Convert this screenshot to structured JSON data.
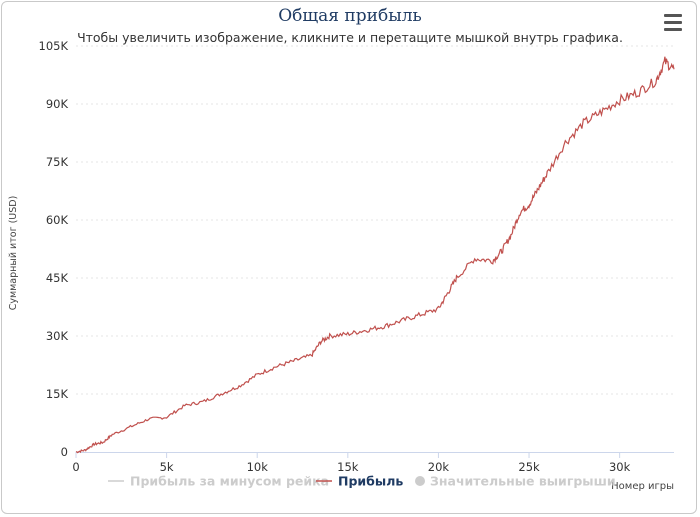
{
  "colors": {
    "series_line": "#c0504d",
    "hidden_series": "#cccccc",
    "gridline": "#e6e6e6",
    "title": "#1f3b63",
    "active_legend": "#1f3b63"
  },
  "toolbar": {
    "menu_icon": "hamburger-menu-icon"
  },
  "chart_data": {
    "type": "line",
    "title": "Общая прибыль",
    "subtitle": "Чтобы увеличить изображение, кликните и перетащите мышкой внутрь графика.",
    "xlabel": "Номер игры",
    "ylabel": "Суммарный итог (USD)",
    "xlim": [
      0,
      33000
    ],
    "ylim": [
      0,
      105000
    ],
    "x_ticks": [
      0,
      5000,
      10000,
      15000,
      20000,
      25000,
      30000
    ],
    "x_tick_labels": [
      "0",
      "5k",
      "10k",
      "15k",
      "20k",
      "25k",
      "30k"
    ],
    "y_ticks": [
      0,
      15000,
      30000,
      45000,
      60000,
      75000,
      90000,
      105000
    ],
    "y_tick_labels": [
      "0",
      "15K",
      "30K",
      "45K",
      "60K",
      "75K",
      "90K",
      "105K"
    ],
    "grid": true,
    "legend": "bottom",
    "legend_items": [
      {
        "name": "Прибыль за минусом рейка",
        "visible": false,
        "marker": "line"
      },
      {
        "name": "Прибыль",
        "visible": true,
        "marker": "line"
      },
      {
        "name": "Значительные выигрыши",
        "visible": false,
        "marker": "circle"
      }
    ],
    "series": [
      {
        "name": "Прибыль",
        "x": [
          0,
          500,
          1000,
          1500,
          2000,
          3000,
          4000,
          5000,
          6000,
          7000,
          8000,
          9000,
          10000,
          11000,
          12000,
          13000,
          13500,
          14000,
          15000,
          16000,
          17000,
          18000,
          19000,
          20000,
          20500,
          21000,
          22000,
          23000,
          23500,
          24000,
          24500,
          25000,
          25500,
          26000,
          27000,
          28000,
          29000,
          30000,
          31000,
          32000,
          32500,
          33000
        ],
        "y": [
          0,
          500,
          2000,
          2500,
          4500,
          6500,
          8500,
          9000,
          12000,
          13000,
          15000,
          17000,
          20000,
          22000,
          23500,
          25000,
          28500,
          30000,
          30500,
          31500,
          32500,
          34000,
          35500,
          37000,
          41000,
          45000,
          50000,
          49500,
          52000,
          56000,
          62000,
          64000,
          68000,
          72000,
          80000,
          85000,
          88000,
          91000,
          93000,
          96000,
          101000,
          99000
        ]
      }
    ]
  }
}
